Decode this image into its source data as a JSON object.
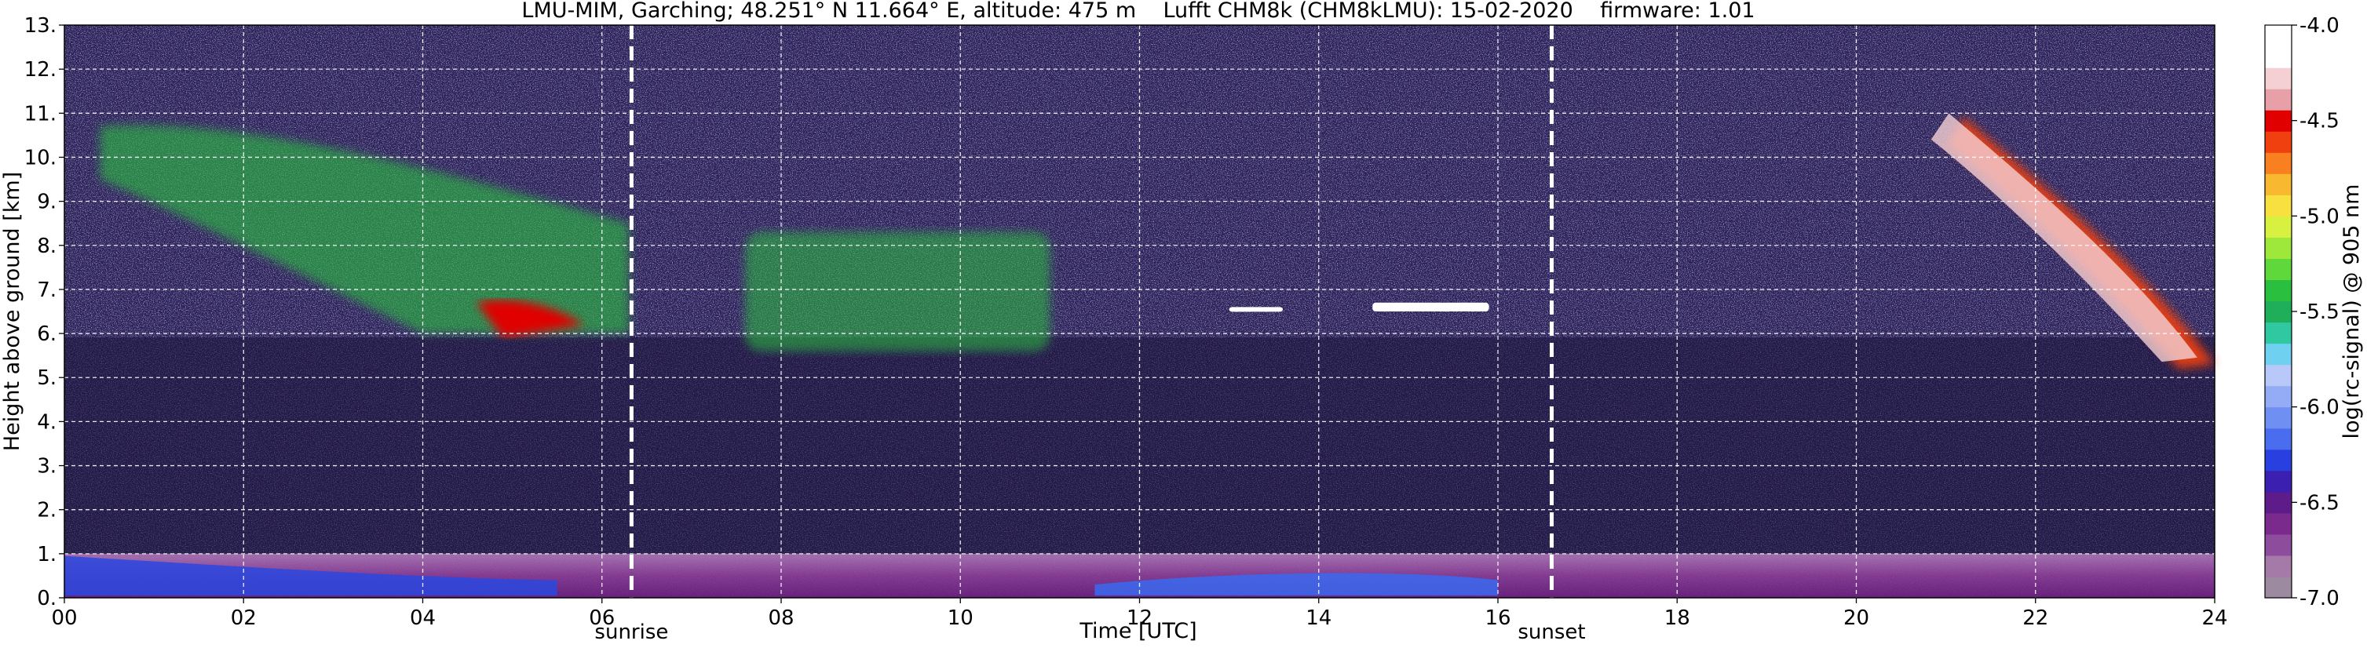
{
  "chart_data": {
    "type": "heatmap",
    "title": "LMU-MIM, Garching; 48.251° N 11.664° E, altitude: 475 m    Lufft CHM8k (CHM8kLMU): 15-02-2020    firmware: 1.01",
    "xlabel": "Time [UTC]",
    "ylabel": "Height above ground [km]",
    "xlim": [
      0,
      24
    ],
    "ylim": [
      0,
      13
    ],
    "x_ticks": [
      "00",
      "02",
      "04",
      "06",
      "08",
      "10",
      "12",
      "14",
      "16",
      "18",
      "20",
      "22",
      "24"
    ],
    "y_ticks": [
      "0.",
      "1.",
      "2.",
      "3.",
      "4.",
      "5.",
      "6.",
      "7.",
      "8.",
      "9.",
      "10.",
      "11.",
      "12.",
      "13."
    ],
    "grid": true,
    "sun_events": [
      {
        "label": "sunrise",
        "time": 6.33
      },
      {
        "label": "sunset",
        "time": 16.6
      }
    ],
    "colorbar": {
      "label": "log(rc-signal) @ 905 nm",
      "range": [
        -7.0,
        -4.0
      ],
      "ticks": [
        "-7.0",
        "-6.5",
        "-6.0",
        "-5.5",
        "-5.0",
        "-4.5",
        "-4.0"
      ]
    },
    "features": [
      {
        "name": "cirrus band",
        "t_start": 0.4,
        "t_end": 6.3,
        "z_bottom": 5.8,
        "z_top": 10.9,
        "level": -5.0
      },
      {
        "name": "mid-level cloud",
        "t_start": 7.6,
        "t_end": 11.0,
        "z_bottom": 5.6,
        "z_top": 8.3,
        "level": -5.4
      },
      {
        "name": "thin cloud layer",
        "t_start": 14.6,
        "t_end": 15.9,
        "z_bottom": 6.5,
        "z_top": 6.7,
        "level": -4.1
      },
      {
        "name": "thin cloud layer",
        "t_start": 13.0,
        "t_end": 13.6,
        "z_bottom": 6.5,
        "z_top": 6.6,
        "level": -4.1
      },
      {
        "name": "descending cirrus",
        "t_start": 21.2,
        "t_end": 24.0,
        "z_bottom": 5.2,
        "z_top": 11.1,
        "level": -4.5
      },
      {
        "name": "boundary layer",
        "t_start": 0.0,
        "t_end": 24.0,
        "z_bottom": 0.0,
        "z_top": 1.0,
        "level": -6.8
      }
    ]
  }
}
